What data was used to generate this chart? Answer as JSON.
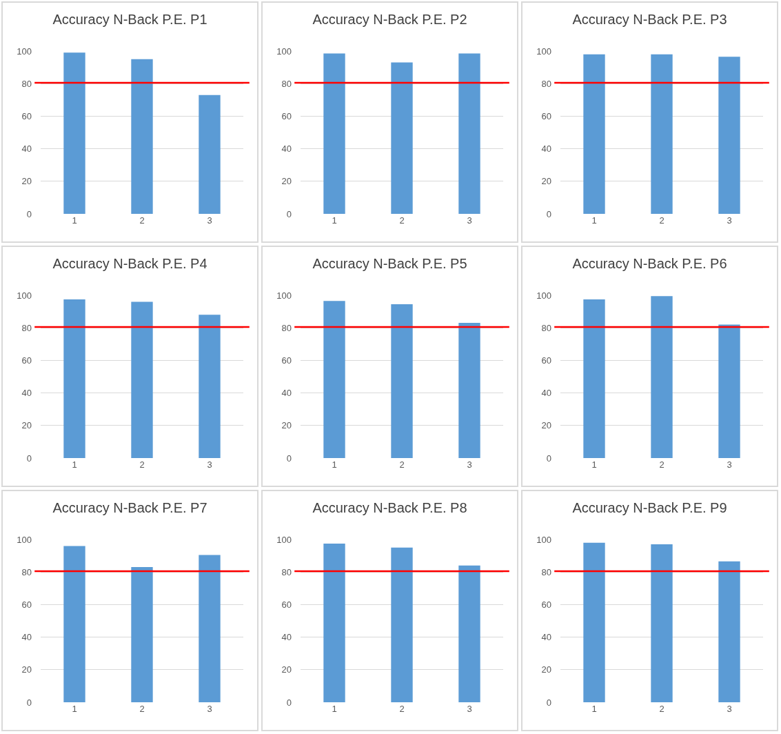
{
  "chart_data": [
    {
      "type": "bar",
      "title": "Accuracy N-Back P.E. P1",
      "categories": [
        "1",
        "2",
        "3"
      ],
      "values": [
        99,
        95,
        73
      ],
      "color": "#5b9bd5",
      "ylim": [
        0,
        100
      ],
      "yticks": [
        0,
        20,
        40,
        60,
        80,
        100
      ],
      "grid": "y",
      "ref_lines": [
        {
          "axis": "y",
          "value": 80.5,
          "color": "#ff0000"
        }
      ]
    },
    {
      "type": "bar",
      "title": "Accuracy N-Back P.E. P2",
      "categories": [
        "1",
        "2",
        "3"
      ],
      "values": [
        98.5,
        93,
        98.5
      ],
      "color": "#5b9bd5",
      "ylim": [
        0,
        100
      ],
      "yticks": [
        0,
        20,
        40,
        60,
        80,
        100
      ],
      "grid": "y",
      "ref_lines": [
        {
          "axis": "y",
          "value": 80.5,
          "color": "#ff0000"
        }
      ]
    },
    {
      "type": "bar",
      "title": "Accuracy N-Back P.E. P3",
      "categories": [
        "1",
        "2",
        "3"
      ],
      "values": [
        98,
        98,
        96.5
      ],
      "color": "#5b9bd5",
      "ylim": [
        0,
        100
      ],
      "yticks": [
        0,
        20,
        40,
        60,
        80,
        100
      ],
      "grid": "y",
      "ref_lines": [
        {
          "axis": "y",
          "value": 80.5,
          "color": "#ff0000"
        }
      ]
    },
    {
      "type": "bar",
      "title": "Accuracy N-Back P.E. P4",
      "categories": [
        "1",
        "2",
        "3"
      ],
      "values": [
        97.5,
        96,
        88
      ],
      "color": "#5b9bd5",
      "ylim": [
        0,
        100
      ],
      "yticks": [
        0,
        20,
        40,
        60,
        80,
        100
      ],
      "grid": "y",
      "ref_lines": [
        {
          "axis": "y",
          "value": 80.5,
          "color": "#ff0000"
        }
      ]
    },
    {
      "type": "bar",
      "title": "Accuracy N-Back P.E. P5",
      "categories": [
        "1",
        "2",
        "3"
      ],
      "values": [
        96.5,
        94.5,
        83
      ],
      "color": "#5b9bd5",
      "ylim": [
        0,
        100
      ],
      "yticks": [
        0,
        20,
        40,
        60,
        80,
        100
      ],
      "grid": "y",
      "ref_lines": [
        {
          "axis": "y",
          "value": 80.5,
          "color": "#ff0000"
        }
      ]
    },
    {
      "type": "bar",
      "title": "Accuracy N-Back P.E. P6",
      "categories": [
        "1",
        "2",
        "3"
      ],
      "values": [
        97.5,
        99.5,
        82
      ],
      "color": "#5b9bd5",
      "ylim": [
        0,
        100
      ],
      "yticks": [
        0,
        20,
        40,
        60,
        80,
        100
      ],
      "grid": "y",
      "ref_lines": [
        {
          "axis": "y",
          "value": 80.5,
          "color": "#ff0000"
        }
      ]
    },
    {
      "type": "bar",
      "title": "Accuracy N-Back P.E. P7",
      "categories": [
        "1",
        "2",
        "3"
      ],
      "values": [
        96,
        83,
        90.5
      ],
      "color": "#5b9bd5",
      "ylim": [
        0,
        100
      ],
      "yticks": [
        0,
        20,
        40,
        60,
        80,
        100
      ],
      "grid": "y",
      "ref_lines": [
        {
          "axis": "y",
          "value": 80.5,
          "color": "#ff0000"
        }
      ]
    },
    {
      "type": "bar",
      "title": "Accuracy N-Back P.E. P8",
      "categories": [
        "1",
        "2",
        "3"
      ],
      "values": [
        97.5,
        95,
        84
      ],
      "color": "#5b9bd5",
      "ylim": [
        0,
        100
      ],
      "yticks": [
        0,
        20,
        40,
        60,
        80,
        100
      ],
      "grid": "y",
      "ref_lines": [
        {
          "axis": "y",
          "value": 80.5,
          "color": "#ff0000"
        }
      ]
    },
    {
      "type": "bar",
      "title": "Accuracy N-Back P.E. P9",
      "categories": [
        "1",
        "2",
        "3"
      ],
      "values": [
        98,
        97,
        86.5
      ],
      "color": "#5b9bd5",
      "ylim": [
        0,
        100
      ],
      "yticks": [
        0,
        20,
        40,
        60,
        80,
        100
      ],
      "grid": "y",
      "ref_lines": [
        {
          "axis": "y",
          "value": 80.5,
          "color": "#ff0000"
        }
      ]
    }
  ]
}
